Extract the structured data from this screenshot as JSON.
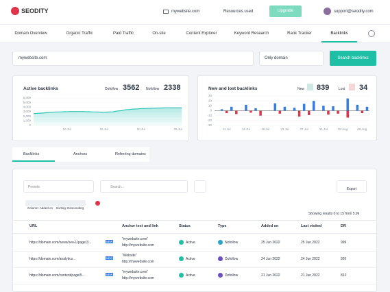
{
  "header": {
    "logo": "SEODITY",
    "project": "mywebsite.com",
    "resources": "Resources used",
    "upgrade": "Upgrade",
    "user": "support@seodity.com"
  },
  "nav": {
    "items": [
      "Domain Overview",
      "Organic Traffic",
      "Paid Traffic",
      "On-site",
      "Content Explorer",
      "Keyword Research",
      "Rank Tracker",
      "Backlinks"
    ],
    "active": 7
  },
  "search": {
    "query": "mywebsite.com",
    "scope": "Only domain",
    "button": "Search backlinks"
  },
  "active_backlinks": {
    "title": "Active backlinks",
    "dofollow_label": "Dofollow",
    "dofollow": 3562,
    "nofollow_label": "Nofollow",
    "nofollow": 2338,
    "chart": {
      "type": "area",
      "color": "#2ec4b6",
      "categories": [
        null,
        null,
        null,
        null,
        "10 Jul",
        null,
        null,
        null,
        null,
        "15 Jul",
        null,
        null,
        null,
        null,
        "20 Jul",
        null,
        null,
        null,
        null,
        "25 Jul"
      ],
      "values": [
        2600,
        2700,
        2850,
        2950,
        3000,
        3050,
        3050,
        3000,
        2950,
        2900,
        2950,
        3200,
        3450,
        3600,
        3700,
        3750,
        3800,
        3850,
        3850,
        3850
      ],
      "ylim": [
        0,
        6000
      ],
      "yticks": [
        0,
        {
          "value": 1000,
          "label": "1,000"
        },
        {
          "value": 2000,
          "label": "2,000"
        },
        {
          "value": 3000,
          "label": "3,000"
        },
        {
          "value": 4000,
          "label": "4,000"
        },
        {
          "value": 5000,
          "label": "5,000"
        },
        {
          "value": 6000,
          "label": "6,000"
        }
      ],
      "grid": true
    }
  },
  "new_lost": {
    "title": "New and lost backlinks",
    "new_label": "New",
    "new": 839,
    "lost_label": "Lost",
    "lost": 34,
    "chart": {
      "type": "bar",
      "categories": [
        null,
        null,
        "11 Jul",
        null,
        null,
        null,
        "15 Jul",
        null,
        null,
        null,
        "19 Jul",
        null,
        null,
        null,
        "23 Jul",
        null,
        null,
        null,
        "27 Jul",
        null,
        null,
        null,
        "31 Jul",
        null,
        null,
        null,
        "04 Aug",
        null,
        null,
        null,
        "08 Aug",
        null
      ],
      "series": [
        {
          "name": "New",
          "color": "#3b7dd8",
          "values": [
            0,
            3,
            0,
            8,
            0,
            0,
            12,
            0,
            5,
            0,
            0,
            0,
            15,
            0,
            8,
            0,
            6,
            0,
            14,
            0,
            20,
            0,
            10,
            0,
            9,
            0,
            0,
            25,
            0,
            12,
            0,
            8
          ]
        },
        {
          "name": "Lost",
          "color": "#e0344b",
          "values": [
            0,
            0,
            -5,
            0,
            -7,
            0,
            0,
            -4,
            0,
            -10,
            0,
            0,
            0,
            -6,
            0,
            0,
            0,
            -12,
            0,
            -9,
            0,
            0,
            0,
            -8,
            0,
            -6,
            0,
            -14,
            0,
            0,
            -5,
            0
          ]
        }
      ],
      "ylim": [
        -30,
        30
      ],
      "yticks": [
        -30,
        -20,
        -10,
        0,
        10,
        20,
        30
      ],
      "grid": true
    }
  },
  "tabs": {
    "items": [
      "Backlinks",
      "Anchors",
      "Referring domains"
    ],
    "active": 0
  },
  "filters": {
    "presets": "Presets",
    "search": "Search...",
    "export": "Export",
    "chips": [
      "Column: Added on",
      "Sorting: Descending"
    ],
    "results": "Showing results 0 to 15 from 5.9k"
  },
  "table": {
    "columns": [
      "URL",
      "Anchor text and link",
      "Status",
      "Type",
      "Added on",
      "Last visited",
      "DR"
    ],
    "rows": [
      {
        "url": "https://domain.com/news/seo-1/page(3...",
        "badge": "NEW",
        "anchor": "\"mywebsite.com\"",
        "link": "http://mywebsite.com",
        "status": "Active",
        "type": "Nofollow",
        "added": "25 Jun 2022",
        "visited": "25 Jun 2022",
        "dr": 999
      },
      {
        "url": "https://domain.com/analytics...",
        "badge": "NEW",
        "anchor": "\"Website\"",
        "link": "http://mywebsite.com",
        "status": "Active",
        "type": "Dofollow",
        "added": "24 Jun 2022",
        "visited": "24 Jun 2022",
        "dr": 920
      },
      {
        "url": "https://domain.com/content/page/5...",
        "badge": "NEW",
        "anchor": "\"mywebsite.com\"",
        "link": "http://mywebsite.com",
        "status": "Active",
        "type": "Dofollow",
        "added": "21 Jun 2022",
        "visited": "21 Jun 2022",
        "dr": 812
      }
    ]
  }
}
